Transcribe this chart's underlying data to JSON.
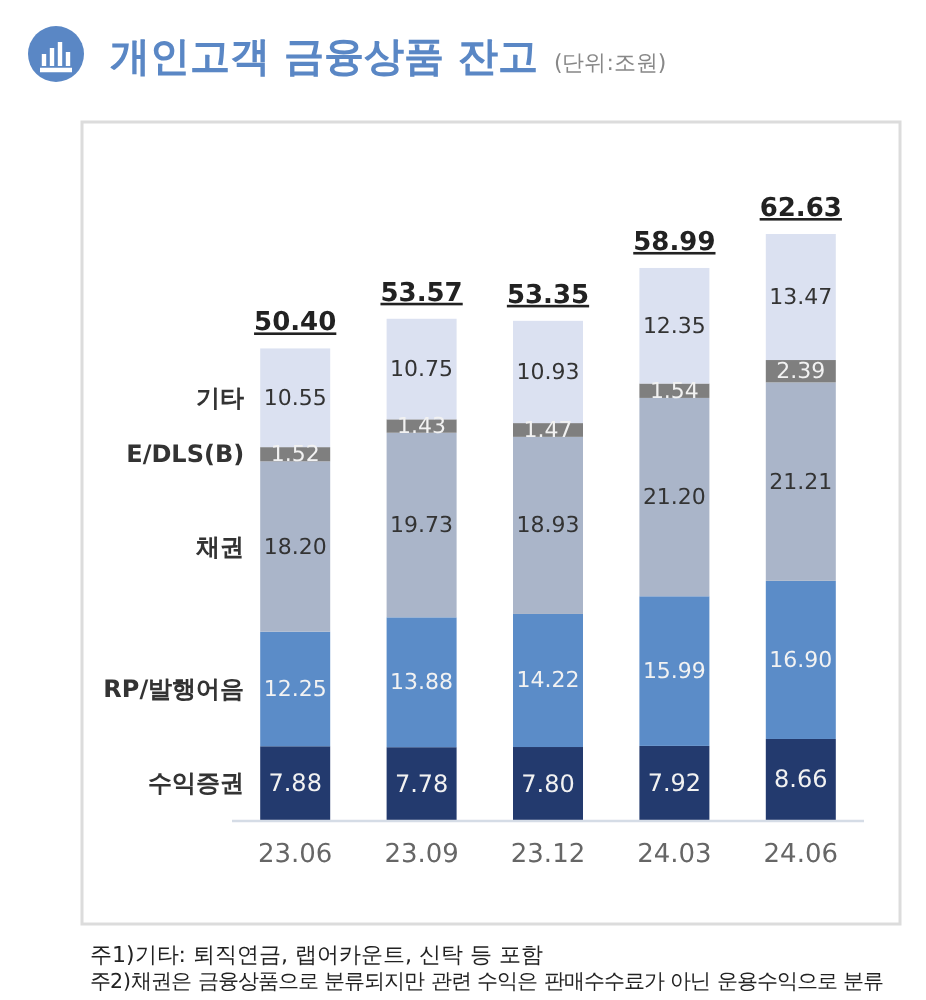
{
  "chart_data": {
    "type": "bar",
    "title": "개인고객 금융상품 잔고",
    "subtitle": "(단위:조원)",
    "stacked": true,
    "categories": [
      "23.06",
      "23.09",
      "23.12",
      "24.03",
      "24.06"
    ],
    "series": [
      {
        "name": "수익증권",
        "color": "#233a6e",
        "values": [
          7.88,
          7.78,
          7.8,
          7.92,
          8.66
        ],
        "value_labels": [
          "7.88",
          "7.78",
          "7.80",
          "7.92",
          "8.66"
        ]
      },
      {
        "name": "RP/발행어음",
        "color": "#5b8cc8",
        "values": [
          12.25,
          13.88,
          14.22,
          15.99,
          16.9
        ],
        "value_labels": [
          "12.25",
          "13.88",
          "14.22",
          "15.99",
          "16.90"
        ]
      },
      {
        "name": "채권",
        "color": "#aab5c9",
        "values": [
          18.2,
          19.73,
          18.93,
          21.2,
          21.21
        ],
        "value_labels": [
          "18.20",
          "19.73",
          "18.93",
          "21.20",
          "21.21"
        ]
      },
      {
        "name": "E/DLS(B)",
        "color": "#7f7f7f",
        "values": [
          1.52,
          1.43,
          1.47,
          1.54,
          2.39
        ],
        "value_labels": [
          "1.52",
          "1.43",
          "1.47",
          "1.54",
          "2.39"
        ]
      },
      {
        "name": "기타",
        "color": "#dbe1f1",
        "values": [
          10.55,
          10.75,
          10.93,
          12.35,
          13.47
        ],
        "value_labels": [
          "10.55",
          "10.75",
          "10.93",
          "12.35",
          "13.47"
        ]
      }
    ],
    "totals": [
      "50.40",
      "53.57",
      "53.35",
      "58.99",
      "62.63"
    ],
    "annotations": [
      "주1)기타: 퇴직연금, 랩어카운트, 신탁 등 포함",
      "주2)채권은 금융상품으로 분류되지만 관련 수익은 판매수수료가 아닌 운용수익으로 분류"
    ]
  }
}
